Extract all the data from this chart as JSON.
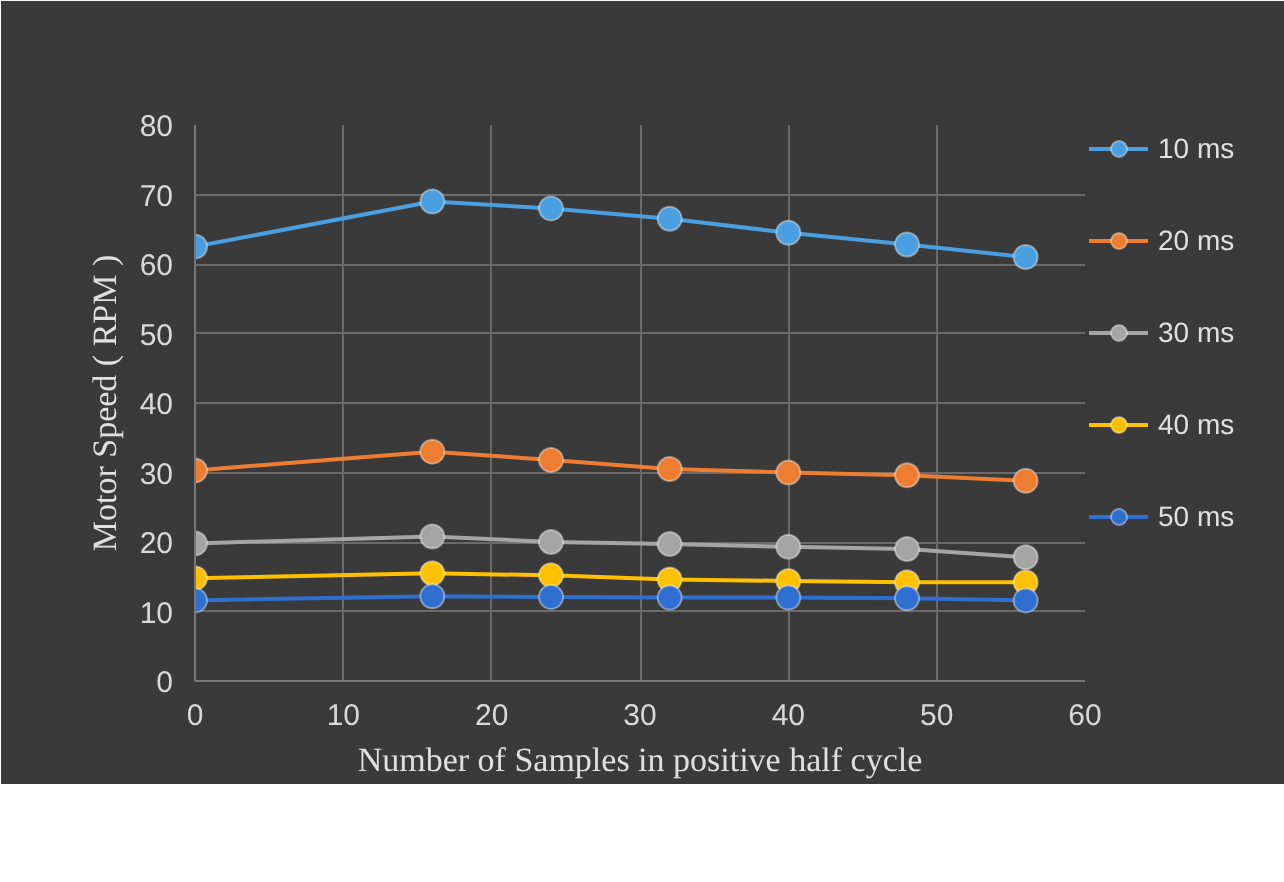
{
  "chart_data": {
    "type": "line",
    "xlabel": "Number of Samples in positive half cycle",
    "ylabel": "Motor Speed ( RPM )",
    "x": [
      0,
      16,
      24,
      32,
      40,
      48,
      56
    ],
    "series": [
      {
        "name": "10 ms",
        "color": "#4a9fe0",
        "values": [
          62.5,
          69,
          68,
          66.5,
          64.5,
          62.8,
          61
        ]
      },
      {
        "name": "20 ms",
        "color": "#ed7d31",
        "values": [
          30.3,
          33,
          31.8,
          30.5,
          30,
          29.6,
          28.8
        ]
      },
      {
        "name": "30 ms",
        "color": "#a5a5a5",
        "values": [
          19.8,
          20.8,
          20,
          19.7,
          19.3,
          19,
          17.8
        ]
      },
      {
        "name": "40 ms",
        "color": "#ffc000",
        "values": [
          14.8,
          15.5,
          15.2,
          14.6,
          14.4,
          14.2,
          14.2
        ]
      },
      {
        "name": "50 ms",
        "color": "#2f6fd0",
        "values": [
          11.6,
          12.2,
          12.1,
          12,
          12,
          11.9,
          11.6
        ]
      }
    ],
    "xlim": [
      0,
      60
    ],
    "xticks": [
      0,
      10,
      20,
      30,
      40,
      50,
      60
    ],
    "ylim": [
      0,
      80
    ],
    "yticks": [
      0,
      10,
      20,
      30,
      40,
      50,
      60,
      70,
      80
    ],
    "grid": true,
    "legend": "right",
    "marker": "circle",
    "line_style": "solid"
  }
}
